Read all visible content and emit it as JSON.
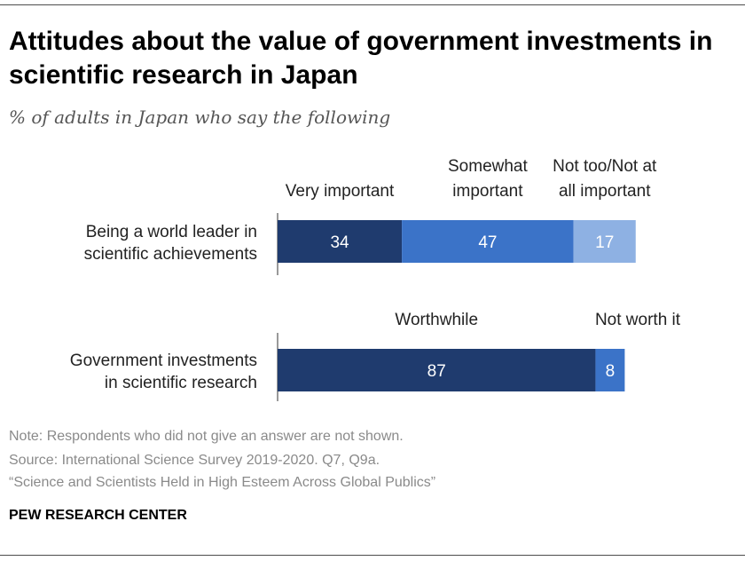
{
  "title": "Attitudes about the value of government investments in scientific research in Japan",
  "subtitle": "% of adults in Japan who say the following",
  "note": "Note: Respondents who did not give an answer are not shown.",
  "source": "Source: International Science Survey 2019-2020. Q7, Q9a.",
  "report": "“Science and Scientists Held in High Esteem Across Global Publics”",
  "brand": "PEW RESEARCH CENTER",
  "colors": {
    "dark": "#1f3b6e",
    "medium": "#3b73c8",
    "light": "#8eb1e3"
  },
  "chart_data": {
    "type": "bar",
    "orientation": "horizontal-stacked",
    "bars": [
      {
        "label": [
          "Being a world leader in",
          "scientific achievements"
        ],
        "segments": [
          {
            "name": "Very important",
            "value": 34,
            "color": "#1f3b6e"
          },
          {
            "name": "Somewhat important",
            "value": 47,
            "color": "#3b73c8"
          },
          {
            "name": "Not too/Not at all important",
            "value": 17,
            "color": "#8eb1e3"
          }
        ],
        "legend": [
          {
            "lines": [
              "Very important"
            ],
            "segment": 0
          },
          {
            "lines": [
              "Somewhat",
              "important"
            ],
            "segment": 1
          },
          {
            "lines": [
              "Not too/Not at",
              "all important"
            ],
            "segment": 2
          }
        ]
      },
      {
        "label": [
          "Government investments",
          "in scientific research"
        ],
        "segments": [
          {
            "name": "Worthwhile",
            "value": 87,
            "color": "#1f3b6e"
          },
          {
            "name": "Not worth it",
            "value": 8,
            "color": "#3b73c8"
          }
        ],
        "legend": [
          {
            "lines": [
              "Worthwhile"
            ],
            "segment": 0
          },
          {
            "lines": [
              "Not worth it"
            ],
            "segment": 1
          }
        ]
      }
    ],
    "xlim": [
      0,
      100
    ]
  }
}
